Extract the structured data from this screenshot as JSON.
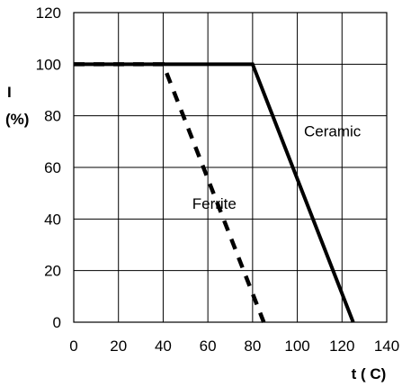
{
  "chart_data": {
    "type": "line",
    "title": "",
    "xlabel": "t ( C)",
    "ylabel_line1": "I",
    "ylabel_line2": "(%)",
    "xlim": [
      0,
      140
    ],
    "ylim": [
      0,
      120
    ],
    "x_ticks": [
      "0",
      "20",
      "40",
      "60",
      "80",
      "100",
      "120",
      "140"
    ],
    "y_ticks": [
      "0",
      "20",
      "40",
      "60",
      "80",
      "100",
      "120"
    ],
    "grid": true,
    "legend": "none",
    "series": [
      {
        "name": "Ferrite",
        "style": "dashed",
        "color": "#000000",
        "x": [
          0,
          40,
          85
        ],
        "y": [
          100,
          100,
          0
        ]
      },
      {
        "name": "Ceramic",
        "style": "solid",
        "color": "#000000",
        "x": [
          0,
          80,
          125
        ],
        "y": [
          100,
          100,
          0
        ]
      }
    ],
    "annotations": [
      {
        "text": "Ceramic",
        "x": 103,
        "y": 72
      },
      {
        "text": "Ferrite",
        "x": 53,
        "y": 44
      }
    ]
  }
}
